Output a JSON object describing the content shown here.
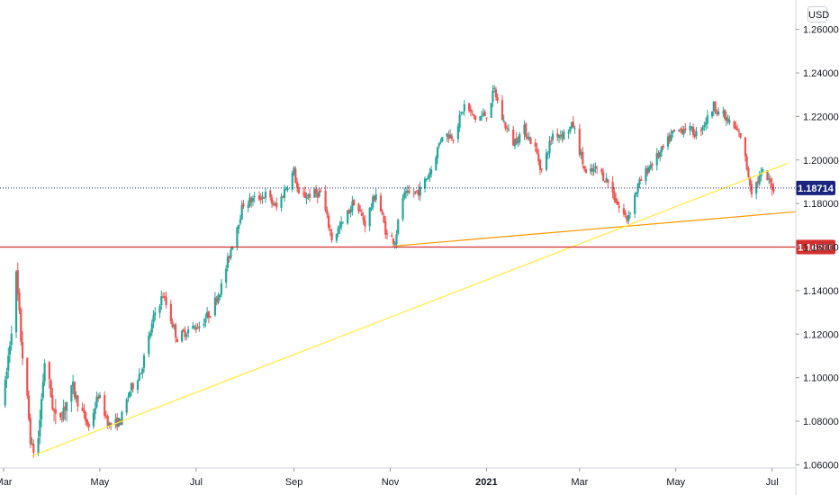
{
  "currency_label": "USD",
  "colors": {
    "up": "#26a69a",
    "down": "#ef5350",
    "trend_short": "#ff9800",
    "trend_long": "#ffeb3b",
    "support_line": "#d32f2f",
    "price_badge": "#1a237e",
    "grid": "#ffffff",
    "axis": "#131722"
  },
  "chart_data": {
    "type": "candlestick",
    "title": "",
    "xlabel": "",
    "ylabel": "",
    "y_ticks": [
      "1.26000",
      "1.24000",
      "1.22000",
      "1.20000",
      "1.18000",
      "1.16000",
      "1.14000",
      "1.12000",
      "1.10000",
      "1.08000",
      "1.06000"
    ],
    "ylim": [
      1.0585,
      1.2735
    ],
    "x_ticks": [
      {
        "label": "Mar",
        "date": "2020-03-01",
        "bold": false
      },
      {
        "label": "May",
        "date": "2020-05-01",
        "bold": false
      },
      {
        "label": "Jul",
        "date": "2020-07-01",
        "bold": false
      },
      {
        "label": "Sep",
        "date": "2020-09-01",
        "bold": false
      },
      {
        "label": "Nov",
        "date": "2020-11-01",
        "bold": false
      },
      {
        "label": "2021",
        "date": "2021-01-01",
        "bold": true
      },
      {
        "label": "Mar",
        "date": "2021-03-01",
        "bold": false
      },
      {
        "label": "May",
        "date": "2021-05-01",
        "bold": false
      },
      {
        "label": "Jul",
        "date": "2021-07-01",
        "bold": false
      }
    ],
    "xlim": [
      "2020-03-01",
      "2021-07-16"
    ],
    "current_price": {
      "label": "1.18714",
      "value": 1.18714
    },
    "horizontal_level": {
      "label": "1.16000",
      "value": 1.16
    },
    "trendlines": [
      {
        "name": "short",
        "from": {
          "date": "2020-11-04",
          "value": 1.1605
        },
        "to": {
          "date": "2021-07-16",
          "value": 1.1762
        }
      },
      {
        "name": "long",
        "from": {
          "date": "2020-03-19",
          "value": 1.064
        },
        "to": {
          "date": "2021-07-11",
          "value": 1.1985
        }
      }
    ],
    "waypoints": [
      [
        "2020-03-01",
        1.088
      ],
      [
        "2020-03-09",
        1.146
      ],
      [
        "2020-03-12",
        1.118
      ],
      [
        "2020-03-19",
        1.066
      ],
      [
        "2020-03-23",
        1.072
      ],
      [
        "2020-03-27",
        1.108
      ],
      [
        "2020-04-03",
        1.08
      ],
      [
        "2020-04-14",
        1.094
      ],
      [
        "2020-04-24",
        1.077
      ],
      [
        "2020-04-30",
        1.092
      ],
      [
        "2020-05-07",
        1.078
      ],
      [
        "2020-05-14",
        1.08
      ],
      [
        "2020-05-20",
        1.094
      ],
      [
        "2020-05-27",
        1.103
      ],
      [
        "2020-06-05",
        1.13
      ],
      [
        "2020-06-10",
        1.138
      ],
      [
        "2020-06-19",
        1.118
      ],
      [
        "2020-06-26",
        1.122
      ],
      [
        "2020-07-03",
        1.124
      ],
      [
        "2020-07-10",
        1.13
      ],
      [
        "2020-07-17",
        1.142
      ],
      [
        "2020-07-24",
        1.162
      ],
      [
        "2020-07-31",
        1.18
      ],
      [
        "2020-08-07",
        1.182
      ],
      [
        "2020-08-14",
        1.184
      ],
      [
        "2020-08-21",
        1.178
      ],
      [
        "2020-08-28",
        1.189
      ],
      [
        "2020-09-01",
        1.195
      ],
      [
        "2020-09-04",
        1.183
      ],
      [
        "2020-09-11",
        1.184
      ],
      [
        "2020-09-18",
        1.185
      ],
      [
        "2020-09-25",
        1.164
      ],
      [
        "2020-10-02",
        1.171
      ],
      [
        "2020-10-09",
        1.181
      ],
      [
        "2020-10-16",
        1.171
      ],
      [
        "2020-10-23",
        1.185
      ],
      [
        "2020-10-30",
        1.165
      ],
      [
        "2020-11-04",
        1.163
      ],
      [
        "2020-11-09",
        1.183
      ],
      [
        "2020-11-20",
        1.186
      ],
      [
        "2020-11-27",
        1.196
      ],
      [
        "2020-12-04",
        1.212
      ],
      [
        "2020-12-11",
        1.211
      ],
      [
        "2020-12-18",
        1.225
      ],
      [
        "2020-12-25",
        1.219
      ],
      [
        "2021-01-01",
        1.221
      ],
      [
        "2021-01-06",
        1.232
      ],
      [
        "2021-01-11",
        1.219
      ],
      [
        "2021-01-18",
        1.208
      ],
      [
        "2021-01-25",
        1.214
      ],
      [
        "2021-02-01",
        1.205
      ],
      [
        "2021-02-05",
        1.195
      ],
      [
        "2021-02-12",
        1.212
      ],
      [
        "2021-02-19",
        1.212
      ],
      [
        "2021-02-25",
        1.216
      ],
      [
        "2021-03-05",
        1.193
      ],
      [
        "2021-03-12",
        1.196
      ],
      [
        "2021-03-19",
        1.19
      ],
      [
        "2021-03-26",
        1.178
      ],
      [
        "2021-03-31",
        1.173
      ],
      [
        "2021-04-07",
        1.188
      ],
      [
        "2021-04-14",
        1.197
      ],
      [
        "2021-04-21",
        1.203
      ],
      [
        "2021-04-29",
        1.212
      ],
      [
        "2021-05-07",
        1.215
      ],
      [
        "2021-05-14",
        1.212
      ],
      [
        "2021-05-21",
        1.219
      ],
      [
        "2021-05-25",
        1.225
      ],
      [
        "2021-06-04",
        1.217
      ],
      [
        "2021-06-11",
        1.211
      ],
      [
        "2021-06-18",
        1.186
      ],
      [
        "2021-06-25",
        1.194
      ],
      [
        "2021-07-02",
        1.187
      ]
    ]
  }
}
